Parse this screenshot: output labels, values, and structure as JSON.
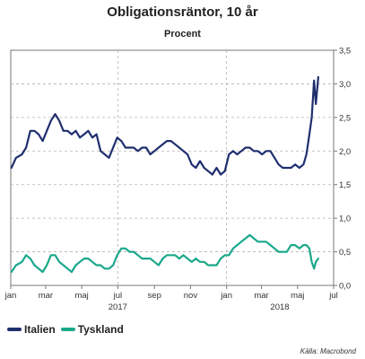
{
  "title": "Obligationsräntor, 10 år",
  "subtitle": "Procent",
  "source": "Källa: Macrobond",
  "colors": {
    "italien": "#1f2f6e",
    "tyskland": "#1aa88a",
    "grid": "#b3b3b3",
    "axis": "#777777"
  },
  "chart_data": {
    "type": "line",
    "title": "Obligationsräntor, 10 år",
    "subtitle": "Procent",
    "ylim": [
      0,
      3.5
    ],
    "y_ticks": [
      "0,0",
      "0,5",
      "1,0",
      "1,5",
      "2,0",
      "2,5",
      "3,0",
      "3,5"
    ],
    "y_axis_side": "right",
    "x_range": [
      "2017-01-01",
      "2018-07-01"
    ],
    "x_tick_labels": [
      "jan",
      "mar",
      "maj",
      "jul",
      "sep",
      "nov",
      "jan",
      "mar",
      "maj",
      "jul"
    ],
    "x_tick_dates": [
      "2017-01-01",
      "2017-03-01",
      "2017-05-01",
      "2017-07-01",
      "2017-09-01",
      "2017-11-01",
      "2018-01-01",
      "2018-03-01",
      "2018-05-01",
      "2018-07-01"
    ],
    "year_labels": [
      {
        "label": "2017",
        "date": "2017-07-01"
      },
      {
        "label": "2018",
        "date": "2018-04-01"
      }
    ],
    "grid": true,
    "legend_position": "bottom-left",
    "series": [
      {
        "name": "Italien",
        "x": [
          "2017-01-02",
          "2017-01-10",
          "2017-01-20",
          "2017-01-27",
          "2017-02-03",
          "2017-02-10",
          "2017-02-17",
          "2017-02-24",
          "2017-03-03",
          "2017-03-10",
          "2017-03-17",
          "2017-03-24",
          "2017-03-31",
          "2017-04-07",
          "2017-04-14",
          "2017-04-21",
          "2017-04-28",
          "2017-05-05",
          "2017-05-12",
          "2017-05-19",
          "2017-05-26",
          "2017-06-02",
          "2017-06-09",
          "2017-06-16",
          "2017-06-23",
          "2017-06-30",
          "2017-07-07",
          "2017-07-14",
          "2017-07-21",
          "2017-07-28",
          "2017-08-04",
          "2017-08-11",
          "2017-08-18",
          "2017-08-25",
          "2017-09-01",
          "2017-09-08",
          "2017-09-15",
          "2017-09-22",
          "2017-09-29",
          "2017-10-06",
          "2017-10-13",
          "2017-10-20",
          "2017-10-27",
          "2017-11-03",
          "2017-11-10",
          "2017-11-17",
          "2017-11-24",
          "2017-12-01",
          "2017-12-08",
          "2017-12-15",
          "2017-12-22",
          "2017-12-29",
          "2018-01-05",
          "2018-01-12",
          "2018-01-19",
          "2018-01-26",
          "2018-02-02",
          "2018-02-09",
          "2018-02-16",
          "2018-02-23",
          "2018-03-02",
          "2018-03-09",
          "2018-03-16",
          "2018-03-23",
          "2018-03-30",
          "2018-04-06",
          "2018-04-13",
          "2018-04-20",
          "2018-04-27",
          "2018-05-04",
          "2018-05-11",
          "2018-05-16",
          "2018-05-21",
          "2018-05-25",
          "2018-05-29",
          "2018-06-01",
          "2018-06-05"
        ],
        "values": [
          1.75,
          1.9,
          1.95,
          2.05,
          2.3,
          2.3,
          2.25,
          2.15,
          2.3,
          2.45,
          2.55,
          2.45,
          2.3,
          2.3,
          2.25,
          2.3,
          2.2,
          2.25,
          2.3,
          2.2,
          2.25,
          2.0,
          1.95,
          1.9,
          2.05,
          2.2,
          2.15,
          2.05,
          2.05,
          2.05,
          2.0,
          2.05,
          2.05,
          1.95,
          2.0,
          2.05,
          2.1,
          2.15,
          2.15,
          2.1,
          2.05,
          2.0,
          1.95,
          1.8,
          1.75,
          1.85,
          1.75,
          1.7,
          1.65,
          1.75,
          1.65,
          1.7,
          1.95,
          2.0,
          1.95,
          2.0,
          2.05,
          2.05,
          2.0,
          2.0,
          1.95,
          2.0,
          2.0,
          1.9,
          1.8,
          1.75,
          1.75,
          1.75,
          1.8,
          1.75,
          1.8,
          1.95,
          2.25,
          2.5,
          3.05,
          2.7,
          3.1
        ]
      },
      {
        "name": "Tyskland",
        "x": [
          "2017-01-02",
          "2017-01-10",
          "2017-01-20",
          "2017-01-27",
          "2017-02-03",
          "2017-02-10",
          "2017-02-17",
          "2017-02-24",
          "2017-03-03",
          "2017-03-10",
          "2017-03-17",
          "2017-03-24",
          "2017-03-31",
          "2017-04-07",
          "2017-04-14",
          "2017-04-21",
          "2017-04-28",
          "2017-05-05",
          "2017-05-12",
          "2017-05-19",
          "2017-05-26",
          "2017-06-02",
          "2017-06-09",
          "2017-06-16",
          "2017-06-23",
          "2017-06-30",
          "2017-07-07",
          "2017-07-14",
          "2017-07-21",
          "2017-07-28",
          "2017-08-04",
          "2017-08-11",
          "2017-08-18",
          "2017-08-25",
          "2017-09-01",
          "2017-09-08",
          "2017-09-15",
          "2017-09-22",
          "2017-09-29",
          "2017-10-06",
          "2017-10-13",
          "2017-10-20",
          "2017-10-27",
          "2017-11-03",
          "2017-11-10",
          "2017-11-17",
          "2017-11-24",
          "2017-12-01",
          "2017-12-08",
          "2017-12-15",
          "2017-12-22",
          "2017-12-29",
          "2018-01-05",
          "2018-01-12",
          "2018-01-19",
          "2018-01-26",
          "2018-02-02",
          "2018-02-09",
          "2018-02-16",
          "2018-02-23",
          "2018-03-02",
          "2018-03-09",
          "2018-03-16",
          "2018-03-23",
          "2018-03-30",
          "2018-04-06",
          "2018-04-13",
          "2018-04-20",
          "2018-04-27",
          "2018-05-04",
          "2018-05-11",
          "2018-05-16",
          "2018-05-21",
          "2018-05-25",
          "2018-05-29",
          "2018-06-01",
          "2018-06-05"
        ],
        "values": [
          0.2,
          0.3,
          0.35,
          0.45,
          0.4,
          0.3,
          0.25,
          0.2,
          0.3,
          0.45,
          0.45,
          0.35,
          0.3,
          0.25,
          0.2,
          0.3,
          0.35,
          0.4,
          0.4,
          0.35,
          0.3,
          0.3,
          0.25,
          0.25,
          0.3,
          0.45,
          0.55,
          0.55,
          0.5,
          0.5,
          0.45,
          0.4,
          0.4,
          0.4,
          0.35,
          0.3,
          0.4,
          0.45,
          0.45,
          0.45,
          0.4,
          0.45,
          0.4,
          0.35,
          0.4,
          0.35,
          0.35,
          0.3,
          0.3,
          0.3,
          0.4,
          0.45,
          0.45,
          0.55,
          0.6,
          0.65,
          0.7,
          0.75,
          0.7,
          0.65,
          0.65,
          0.65,
          0.6,
          0.55,
          0.5,
          0.5,
          0.5,
          0.6,
          0.6,
          0.55,
          0.6,
          0.6,
          0.55,
          0.35,
          0.25,
          0.35,
          0.4
        ]
      }
    ]
  }
}
